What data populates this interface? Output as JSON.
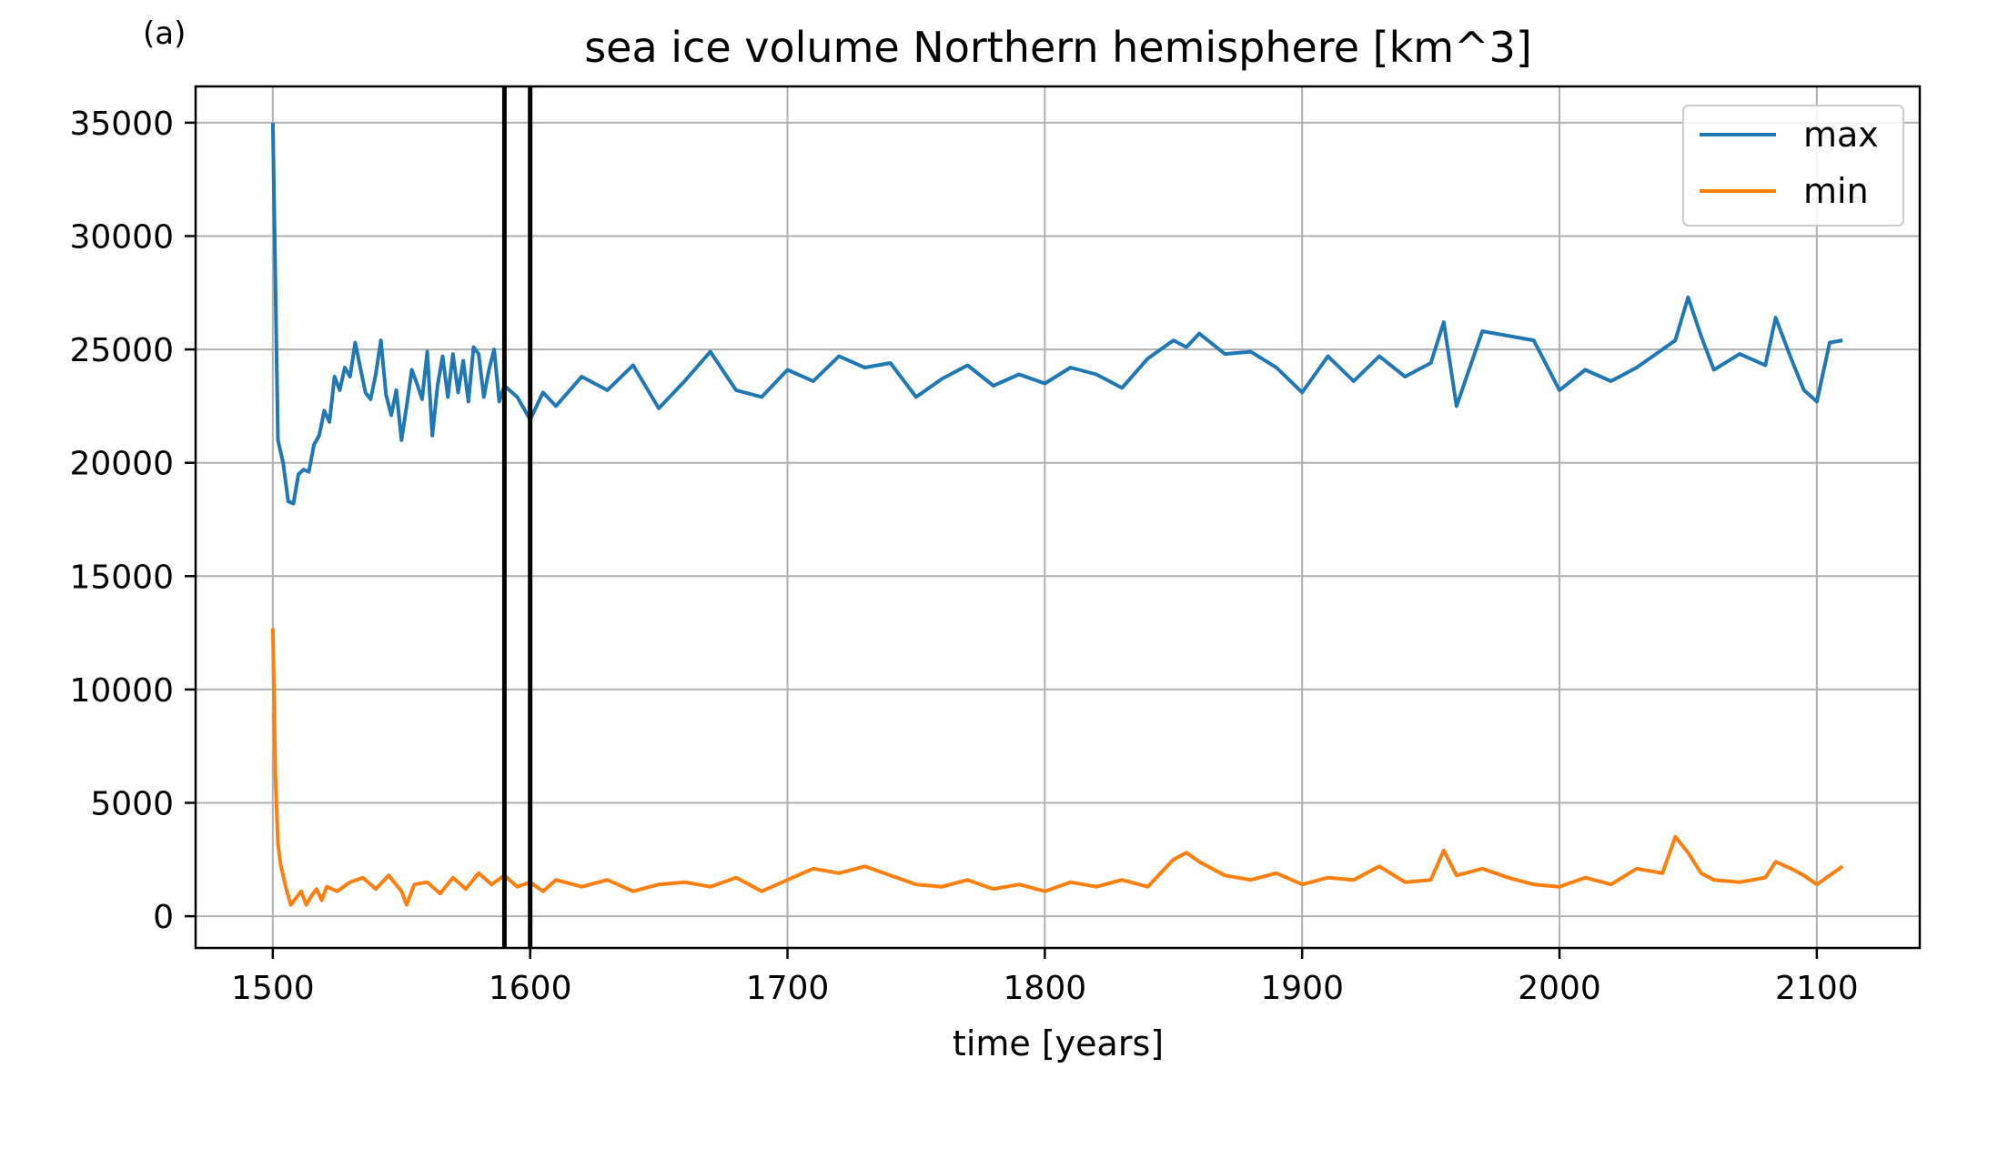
{
  "panel_label": "(a)",
  "chart_data": {
    "type": "line",
    "title": "sea ice volume Northern hemisphere [km^3]",
    "xlabel": "time [years]",
    "ylabel": "",
    "xlim": [
      1470,
      2140
    ],
    "ylim": [
      -1400,
      36600
    ],
    "xticks": [
      1500,
      1600,
      1700,
      1800,
      1900,
      2000,
      2100
    ],
    "yticks": [
      0,
      5000,
      10000,
      15000,
      20000,
      25000,
      30000,
      35000
    ],
    "grid": true,
    "legend_position": "top-right",
    "vertical_lines": [
      1590,
      1600
    ],
    "series": [
      {
        "name": "max",
        "color": "#1f77b4",
        "x": [
          1500,
          1502,
          1504,
          1506,
          1508,
          1510,
          1512,
          1514,
          1516,
          1518,
          1520,
          1522,
          1524,
          1526,
          1528,
          1530,
          1532,
          1534,
          1536,
          1538,
          1540,
          1542,
          1544,
          1546,
          1548,
          1550,
          1552,
          1554,
          1556,
          1558,
          1560,
          1562,
          1564,
          1566,
          1568,
          1570,
          1572,
          1574,
          1576,
          1578,
          1580,
          1582,
          1584,
          1586,
          1588,
          1590,
          1595,
          1600,
          1605,
          1610,
          1620,
          1630,
          1640,
          1650,
          1660,
          1670,
          1680,
          1690,
          1700,
          1710,
          1720,
          1730,
          1740,
          1750,
          1760,
          1770,
          1780,
          1790,
          1800,
          1810,
          1820,
          1830,
          1840,
          1850,
          1855,
          1860,
          1870,
          1880,
          1890,
          1900,
          1910,
          1920,
          1930,
          1940,
          1950,
          1955,
          1960,
          1970,
          1980,
          1990,
          2000,
          2010,
          2020,
          2030,
          2040,
          2045,
          2050,
          2055,
          2060,
          2070,
          2080,
          2084,
          2090,
          2095,
          2100,
          2105,
          2110
        ],
        "values": [
          35000,
          21000,
          20000,
          18300,
          18200,
          19500,
          19700,
          19600,
          20800,
          21200,
          22300,
          21800,
          23800,
          23200,
          24200,
          23800,
          25300,
          24200,
          23100,
          22800,
          23900,
          25400,
          23000,
          22100,
          23200,
          21000,
          22500,
          24100,
          23500,
          22800,
          24900,
          21200,
          23400,
          24700,
          22900,
          24800,
          23100,
          24500,
          22700,
          25100,
          24800,
          22900,
          24100,
          25000,
          22700,
          23400,
          22900,
          21900,
          23100,
          22500,
          23800,
          23200,
          24300,
          22400,
          23600,
          24900,
          23200,
          22900,
          24100,
          23600,
          24700,
          24200,
          24400,
          22900,
          23700,
          24300,
          23400,
          23900,
          23500,
          24200,
          23900,
          23300,
          24600,
          25400,
          25100,
          25700,
          24800,
          24900,
          24200,
          23100,
          24700,
          23600,
          24700,
          23800,
          24400,
          26200,
          22500,
          25800,
          25600,
          25400,
          23200,
          24100,
          23600,
          24200,
          25000,
          25400,
          27300,
          25600,
          24100,
          24800,
          24300,
          26400,
          24600,
          23200,
          22700,
          25300,
          25400
        ]
      },
      {
        "name": "min",
        "color": "#ff7f0e",
        "x": [
          1500,
          1501,
          1502,
          1503,
          1505,
          1507,
          1509,
          1511,
          1513,
          1515,
          1517,
          1519,
          1521,
          1525,
          1530,
          1535,
          1540,
          1545,
          1550,
          1552,
          1555,
          1560,
          1565,
          1570,
          1575,
          1580,
          1585,
          1590,
          1595,
          1600,
          1605,
          1610,
          1620,
          1630,
          1640,
          1650,
          1660,
          1670,
          1680,
          1690,
          1700,
          1710,
          1720,
          1730,
          1740,
          1750,
          1760,
          1770,
          1780,
          1790,
          1800,
          1810,
          1820,
          1830,
          1840,
          1850,
          1855,
          1860,
          1870,
          1880,
          1890,
          1900,
          1910,
          1920,
          1930,
          1940,
          1950,
          1955,
          1960,
          1970,
          1980,
          1990,
          2000,
          2010,
          2020,
          2030,
          2040,
          2045,
          2050,
          2055,
          2060,
          2070,
          2080,
          2084,
          2090,
          2095,
          2100,
          2105,
          2110
        ],
        "values": [
          12700,
          6200,
          3200,
          2300,
          1300,
          500,
          800,
          1100,
          500,
          900,
          1200,
          700,
          1300,
          1100,
          1500,
          1700,
          1200,
          1800,
          1100,
          500,
          1400,
          1500,
          1000,
          1700,
          1200,
          1900,
          1400,
          1800,
          1300,
          1500,
          1100,
          1600,
          1300,
          1600,
          1100,
          1400,
          1500,
          1300,
          1700,
          1100,
          1600,
          2100,
          1900,
          2200,
          1800,
          1400,
          1300,
          1600,
          1200,
          1400,
          1100,
          1500,
          1300,
          1600,
          1300,
          2500,
          2800,
          2400,
          1800,
          1600,
          1900,
          1400,
          1700,
          1600,
          2200,
          1500,
          1600,
          2900,
          1800,
          2100,
          1700,
          1400,
          1300,
          1700,
          1400,
          2100,
          1900,
          3500,
          2800,
          1900,
          1600,
          1500,
          1700,
          2400,
          2100,
          1800,
          1400,
          1800,
          2200
        ]
      }
    ]
  }
}
